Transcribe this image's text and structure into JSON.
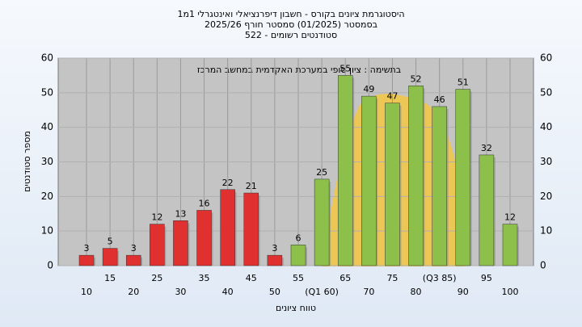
{
  "chart_data": {
    "type": "bar",
    "title": "היסטוגרמת ציונים בקורס - חשבון דיפרנציאלי ואינטגרלי 1מ1",
    "subtitle": [
      "בסמסטר  (01/2025)  סמסטר חורף  2025/26",
      "סטודנטים רשומים - 522"
    ],
    "annotation": "בתשימה : ציון סופי במערכת האקדמית במחשב המרכז",
    "y_label": "מספר סטודנטים",
    "x_label": "טווח ציונים",
    "categories": [
      "10",
      "15",
      "20",
      "25",
      "30",
      "35",
      "40",
      "45",
      "50",
      "55",
      "(Q1 60)",
      "65",
      "70",
      "75",
      "80",
      "(Q3 85)",
      "90",
      "95",
      "100"
    ],
    "values": [
      3,
      5,
      3,
      12,
      13,
      16,
      22,
      21,
      3,
      6,
      25,
      55,
      49,
      47,
      52,
      46,
      51,
      32,
      12
    ],
    "colors": [
      "#e03030",
      "#e03030",
      "#e03030",
      "#e03030",
      "#e03030",
      "#e03030",
      "#e03030",
      "#e03030",
      "#e03030",
      "#8cc04a",
      "#8cc04a",
      "#8cc04a",
      "#8cc04a",
      "#8cc04a",
      "#8cc04a",
      "#8cc04a",
      "#8cc04a",
      "#8cc04a",
      "#8cc04a"
    ],
    "ylim": [
      0,
      60
    ],
    "yticks": [
      0,
      10,
      20,
      30,
      40,
      50,
      60
    ],
    "grid": true
  }
}
